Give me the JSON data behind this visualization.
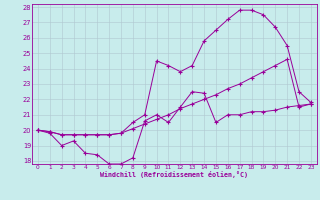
{
  "xlabel": "Windchill (Refroidissement éolien,°C)",
  "background_color": "#c8ecec",
  "grid_color": "#b0c8d0",
  "line_color": "#990099",
  "xlim": [
    -0.5,
    23.5
  ],
  "ylim": [
    17.8,
    28.2
  ],
  "yticks": [
    18,
    19,
    20,
    21,
    22,
    23,
    24,
    25,
    26,
    27,
    28
  ],
  "xticks": [
    0,
    1,
    2,
    3,
    4,
    5,
    6,
    7,
    8,
    9,
    10,
    11,
    12,
    13,
    14,
    15,
    16,
    17,
    18,
    19,
    20,
    21,
    22,
    23
  ],
  "s1_x": [
    0,
    1,
    2,
    3,
    4,
    5,
    6,
    7,
    8,
    9,
    10,
    11,
    12,
    13,
    14,
    15,
    16,
    17,
    18,
    19,
    20,
    21,
    22,
    23
  ],
  "s1_y": [
    20.0,
    19.8,
    19.0,
    19.3,
    18.5,
    18.4,
    17.8,
    17.8,
    18.2,
    20.6,
    21.0,
    20.5,
    21.5,
    22.5,
    22.4,
    20.5,
    21.0,
    21.0,
    21.2,
    21.2,
    21.3,
    21.5,
    21.6,
    21.7
  ],
  "s2_x": [
    0,
    1,
    2,
    3,
    4,
    5,
    6,
    7,
    8,
    9,
    10,
    11,
    12,
    13,
    14,
    15,
    16,
    17,
    18,
    19,
    20,
    21,
    22,
    23
  ],
  "s2_y": [
    20.0,
    19.9,
    19.7,
    19.7,
    19.7,
    19.7,
    19.7,
    19.8,
    20.1,
    20.4,
    20.7,
    21.0,
    21.4,
    21.7,
    22.0,
    22.3,
    22.7,
    23.0,
    23.4,
    23.8,
    24.2,
    24.6,
    21.5,
    21.7
  ],
  "s3_x": [
    0,
    1,
    2,
    3,
    4,
    5,
    6,
    7,
    8,
    9,
    10,
    11,
    12,
    13,
    14,
    15,
    16,
    17,
    18,
    19,
    20,
    21,
    22,
    23
  ],
  "s3_y": [
    20.0,
    19.9,
    19.7,
    19.7,
    19.7,
    19.7,
    19.7,
    19.8,
    20.5,
    21.0,
    24.5,
    24.2,
    23.8,
    24.2,
    25.8,
    26.5,
    27.2,
    27.8,
    27.8,
    27.5,
    26.7,
    25.5,
    22.5,
    21.8
  ]
}
